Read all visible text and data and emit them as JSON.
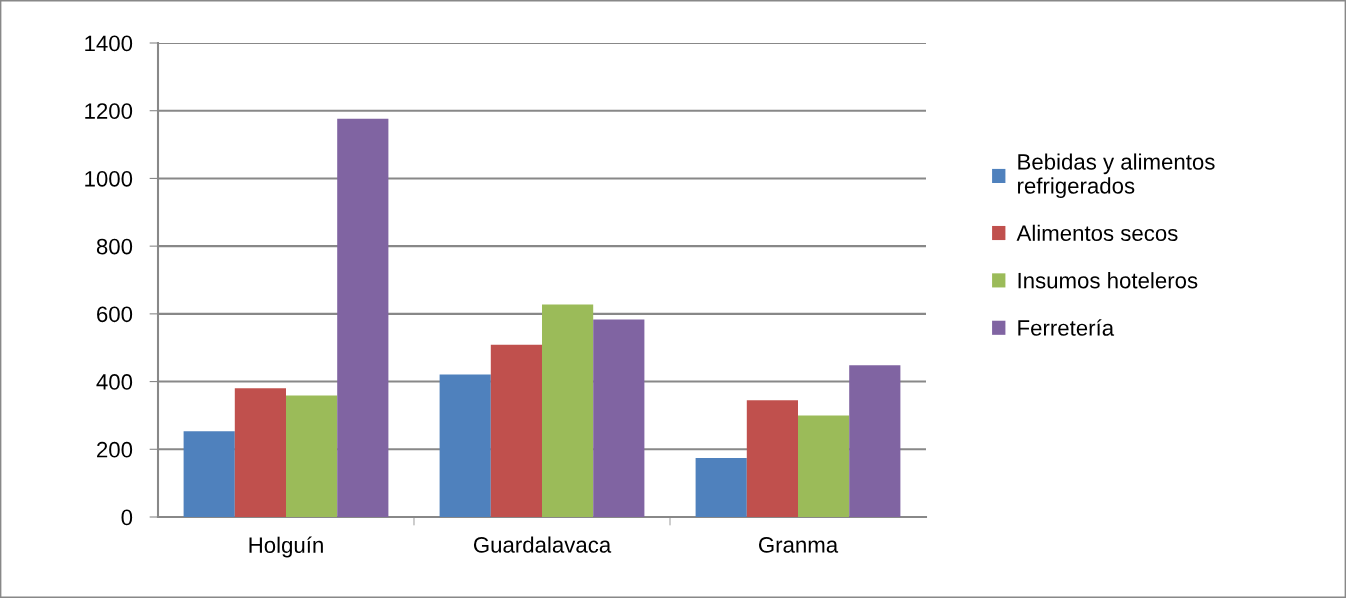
{
  "chart_data": {
    "type": "bar",
    "categories": [
      "Holguín",
      "Guardalavaca",
      "Granma"
    ],
    "series": [
      {
        "name": "Bebidas y alimentos refrigerados",
        "color": "#4f81bd",
        "values": [
          253,
          421,
          174
        ]
      },
      {
        "name": "Alimentos secos",
        "color": "#c0504d",
        "values": [
          380,
          509,
          345
        ]
      },
      {
        "name": "Insumos hoteleros",
        "color": "#9bbb59",
        "values": [
          359,
          628,
          300
        ]
      },
      {
        "name": "Ferretería",
        "color": "#8064a2",
        "values": [
          1176,
          583,
          448
        ]
      }
    ],
    "ylim": [
      0,
      1400
    ],
    "yticks": [
      0,
      200,
      400,
      600,
      800,
      1000,
      1200,
      1400
    ],
    "grid": "y",
    "legend": "right"
  }
}
